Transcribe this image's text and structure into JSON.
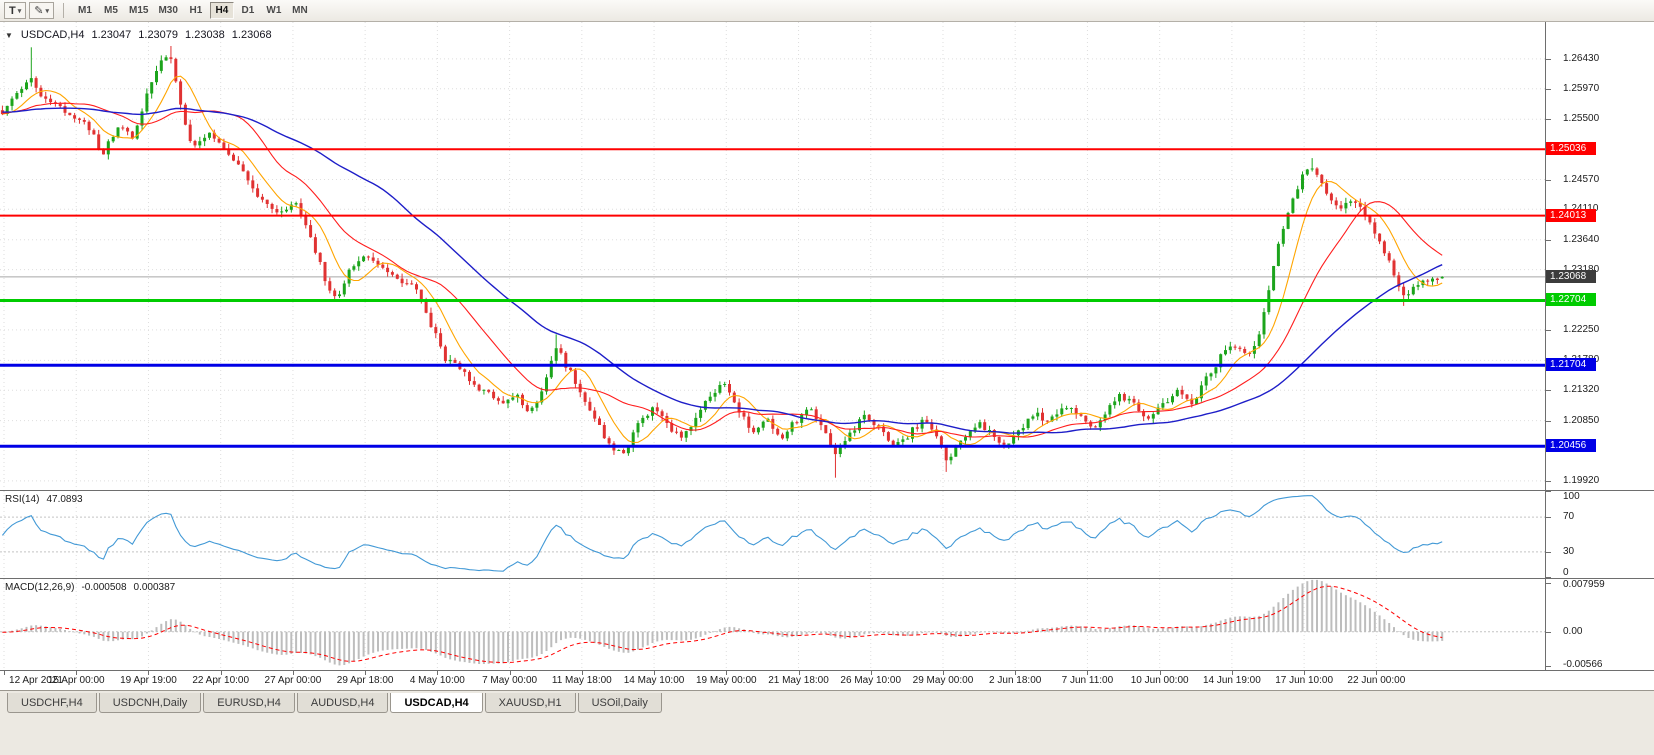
{
  "toolbar": {
    "template_button": {
      "label": "T",
      "caret": "▾"
    },
    "draw_button": {
      "glyph": "✎",
      "caret": "▾"
    },
    "timeframes": [
      "M1",
      "M5",
      "M15",
      "M30",
      "H1",
      "H4",
      "D1",
      "W1",
      "MN"
    ],
    "active_timeframe": "H4"
  },
  "price_chart": {
    "expander_glyph": "▼",
    "info_line": {
      "symbol": "USDCAD,H4",
      "open": "1.23047",
      "high": "1.23079",
      "low": "1.23038",
      "close": "1.23068"
    }
  },
  "chart_data": {
    "type": "candlestick",
    "title": "USDCAD,H4",
    "symbol": "USDCAD",
    "timeframe": "H4",
    "candle_count": 300,
    "shift_fraction": 0.935,
    "up_color": "#1CA41C",
    "down_color": "#E03232",
    "grid_color": "#dedede",
    "y_axis": {
      "range": [
        1.1978,
        1.27
      ],
      "gridline_labels": [
        "1.26430",
        "1.25970",
        "1.25500",
        "1.24570",
        "1.24110",
        "1.23640",
        "1.23180",
        "1.22250",
        "1.21780",
        "1.21320",
        "1.20850",
        "1.19920"
      ]
    },
    "x_labels": [
      "12 Apr 2021",
      "15 Apr 00:00",
      "19 Apr 19:00",
      "22 Apr 10:00",
      "27 Apr 00:00",
      "29 Apr 18:00",
      "4 May 10:00",
      "7 May 00:00",
      "11 May 18:00",
      "14 May 10:00",
      "19 May 00:00",
      "21 May 18:00",
      "26 May 10:00",
      "29 May 00:00",
      "2 Jun 18:00",
      "7 Jun 11:00",
      "10 Jun 00:00",
      "14 Jun 19:00",
      "17 Jun 10:00",
      "22 Jun 00:00"
    ],
    "horizontal_lines": [
      {
        "price": 1.25036,
        "label": "1.25036",
        "color": "#FF0000",
        "width": 2
      },
      {
        "price": 1.24013,
        "label": "1.24013",
        "color": "#FF0000",
        "width": 2
      },
      {
        "price": 1.22704,
        "label": "1.22704",
        "color": "#00CC00",
        "width": 3
      },
      {
        "price": 1.21704,
        "label": "1.21704",
        "color": "#0000E6",
        "width": 3
      },
      {
        "price": 1.20456,
        "label": "1.20456",
        "color": "#0000E6",
        "width": 3
      }
    ],
    "current_price": {
      "value": 1.23068,
      "label": "1.23068",
      "line_color": "#a8a8a8",
      "badge_color": "#3c3c3c"
    },
    "last_candle": {
      "open": 1.23047,
      "high": 1.23079,
      "low": 1.23038,
      "close": 1.23068
    },
    "moving_averages": [
      {
        "name": "fast",
        "period": 8,
        "color": "#FFA500",
        "width": 1.1
      },
      {
        "name": "medium",
        "period": 21,
        "color": "#FF1E1E",
        "width": 1.1
      },
      {
        "name": "slow",
        "period": 50,
        "color": "#1E1EC8",
        "width": 1.4
      }
    ],
    "price_path": [
      [
        0.0,
        1.256
      ],
      [
        0.008,
        1.2585
      ],
      [
        0.02,
        1.2612
      ],
      [
        0.03,
        1.258
      ],
      [
        0.045,
        1.2563
      ],
      [
        0.058,
        1.2546
      ],
      [
        0.07,
        1.2496
      ],
      [
        0.08,
        1.254
      ],
      [
        0.09,
        1.2522
      ],
      [
        0.1,
        1.2584
      ],
      [
        0.108,
        1.263
      ],
      [
        0.116,
        1.2648
      ],
      [
        0.124,
        1.257
      ],
      [
        0.132,
        1.25
      ],
      [
        0.142,
        1.2528
      ],
      [
        0.152,
        1.2506
      ],
      [
        0.163,
        1.2478
      ],
      [
        0.178,
        1.2432
      ],
      [
        0.192,
        1.2406
      ],
      [
        0.203,
        1.2422
      ],
      [
        0.214,
        1.2372
      ],
      [
        0.224,
        1.2302
      ],
      [
        0.232,
        1.2274
      ],
      [
        0.242,
        1.2318
      ],
      [
        0.252,
        1.234
      ],
      [
        0.263,
        1.2322
      ],
      [
        0.274,
        1.23
      ],
      [
        0.287,
        1.2288
      ],
      [
        0.297,
        1.2238
      ],
      [
        0.307,
        1.2182
      ],
      [
        0.317,
        1.2165
      ],
      [
        0.327,
        1.2142
      ],
      [
        0.337,
        1.2126
      ],
      [
        0.347,
        1.2105
      ],
      [
        0.357,
        1.2122
      ],
      [
        0.367,
        1.2098
      ],
      [
        0.377,
        1.2142
      ],
      [
        0.384,
        1.2205
      ],
      [
        0.392,
        1.2168
      ],
      [
        0.401,
        1.2132
      ],
      [
        0.411,
        1.2088
      ],
      [
        0.421,
        1.2048
      ],
      [
        0.431,
        1.203
      ],
      [
        0.441,
        1.2078
      ],
      [
        0.451,
        1.2102
      ],
      [
        0.461,
        1.2082
      ],
      [
        0.471,
        1.2055
      ],
      [
        0.481,
        1.2082
      ],
      [
        0.491,
        1.2122
      ],
      [
        0.501,
        1.2145
      ],
      [
        0.511,
        1.2098
      ],
      [
        0.521,
        1.2068
      ],
      [
        0.531,
        1.209
      ],
      [
        0.541,
        1.2058
      ],
      [
        0.551,
        1.2085
      ],
      [
        0.561,
        1.2108
      ],
      [
        0.571,
        1.2068
      ],
      [
        0.579,
        1.2032
      ],
      [
        0.589,
        1.2066
      ],
      [
        0.599,
        1.2092
      ],
      [
        0.609,
        1.207
      ],
      [
        0.619,
        1.2045
      ],
      [
        0.629,
        1.2062
      ],
      [
        0.639,
        1.2086
      ],
      [
        0.649,
        1.2058
      ],
      [
        0.657,
        1.2022
      ],
      [
        0.667,
        1.2056
      ],
      [
        0.677,
        1.2082
      ],
      [
        0.687,
        1.2065
      ],
      [
        0.697,
        1.2046
      ],
      [
        0.707,
        1.2072
      ],
      [
        0.717,
        1.2096
      ],
      [
        0.727,
        1.208
      ],
      [
        0.737,
        1.211
      ],
      [
        0.747,
        1.2092
      ],
      [
        0.757,
        1.2072
      ],
      [
        0.767,
        1.2102
      ],
      [
        0.777,
        1.2126
      ],
      [
        0.787,
        1.2106
      ],
      [
        0.797,
        1.2088
      ],
      [
        0.807,
        1.2112
      ],
      [
        0.817,
        1.2132
      ],
      [
        0.826,
        1.2108
      ],
      [
        0.836,
        1.2152
      ],
      [
        0.846,
        1.2182
      ],
      [
        0.856,
        1.2202
      ],
      [
        0.865,
        1.2188
      ],
      [
        0.872,
        1.2212
      ],
      [
        0.88,
        1.2292
      ],
      [
        0.888,
        1.2372
      ],
      [
        0.896,
        1.2425
      ],
      [
        0.904,
        1.2468
      ],
      [
        0.91,
        1.248
      ],
      [
        0.918,
        1.2442
      ],
      [
        0.928,
        1.2412
      ],
      [
        0.938,
        1.2428
      ],
      [
        0.948,
        1.2392
      ],
      [
        0.957,
        1.2362
      ],
      [
        0.966,
        1.2312
      ],
      [
        0.974,
        1.2273
      ],
      [
        0.984,
        1.2296
      ],
      [
        1.0,
        1.23068
      ]
    ],
    "spikes": [
      {
        "t": 0.02,
        "high": 1.2661
      },
      {
        "t": 0.116,
        "high": 1.2663
      },
      {
        "t": 0.384,
        "high": 1.2218
      },
      {
        "t": 0.579,
        "low": 1.1997
      },
      {
        "t": 0.657,
        "low": 1.2006
      },
      {
        "t": 0.91,
        "high": 1.249
      },
      {
        "t": 0.974,
        "low": 1.2262
      }
    ],
    "indicators": {
      "rsi": {
        "label": "RSI(14)",
        "value": "47.0893",
        "period": 14,
        "color": "#4299D6",
        "levels": [
          70,
          30
        ],
        "axis_labels": [
          {
            "value": 100,
            "text": "100"
          },
          {
            "value": 70,
            "text": "70"
          },
          {
            "value": 30,
            "text": "30"
          },
          {
            "value": 0,
            "text": "0"
          }
        ],
        "range": [
          0,
          100
        ]
      },
      "macd": {
        "label": "MACD(12,26,9)",
        "value_main": "-0.000508",
        "value_signal": "0.000387",
        "fast": 12,
        "slow": 26,
        "signal": 9,
        "histogram_color": "#BDBDBD",
        "signal_color": "#FF0000",
        "scale_range": [
          -0.0063,
          0.0087
        ],
        "axis_labels": [
          {
            "value": 0.007959,
            "text": "0.007959"
          },
          {
            "value": 0,
            "text": "0.00"
          },
          {
            "value": -0.00566,
            "text": "-0.00566"
          }
        ]
      }
    }
  },
  "tabs": {
    "items": [
      "USDCHF,H4",
      "USDCNH,Daily",
      "EURUSD,H4",
      "AUDUSD,H4",
      "USDCAD,H4",
      "XAUUSD,H1",
      "USOil,Daily"
    ],
    "active": "USDCAD,H4"
  }
}
